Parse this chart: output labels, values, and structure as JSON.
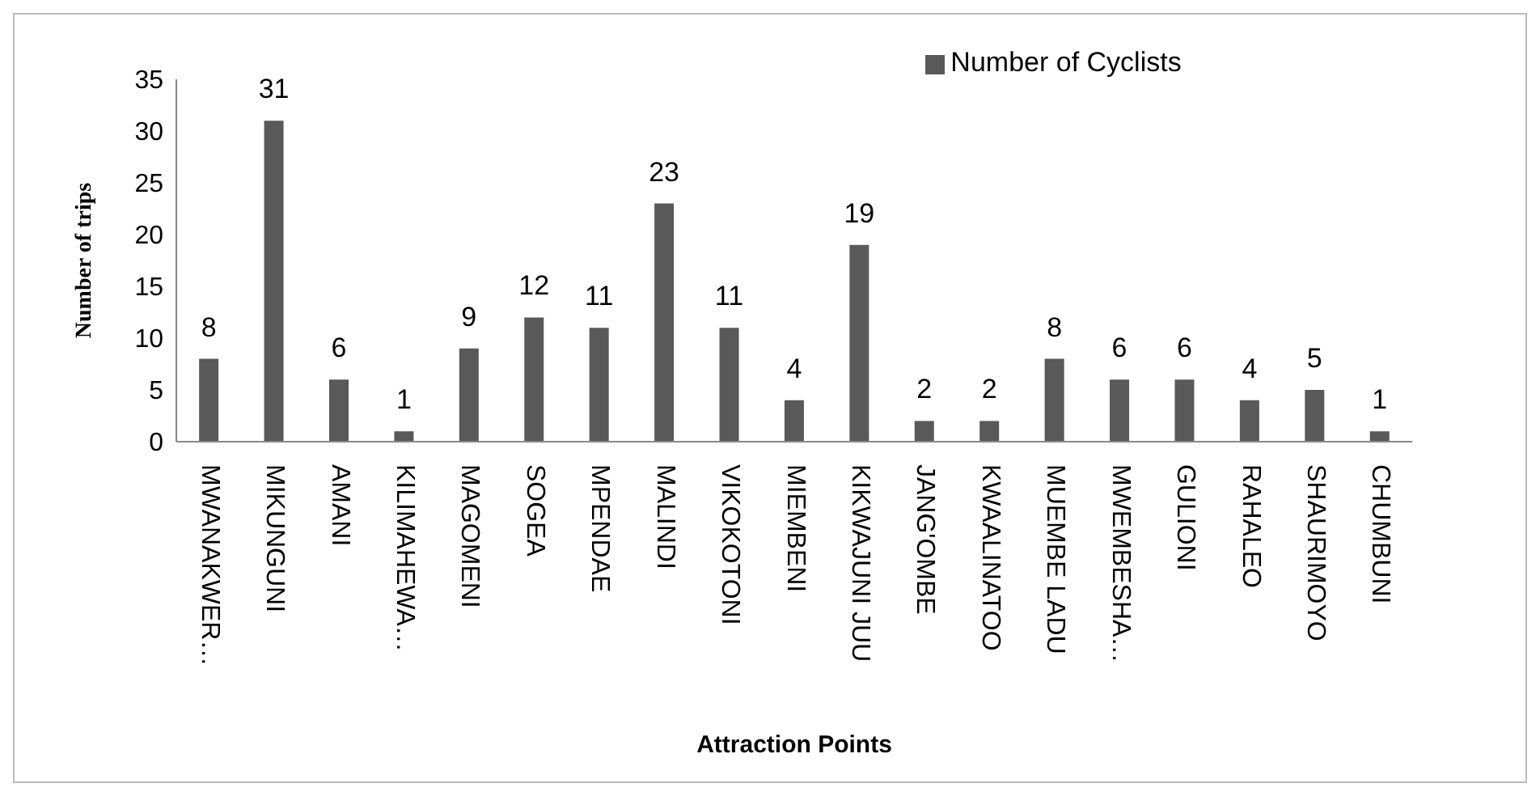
{
  "chart_data": {
    "type": "bar",
    "xlabel": "Attraction Points",
    "ylabel": "Number of trips",
    "categories": [
      "MWANAKWER…",
      "MIKUNGUNI",
      "AMANI",
      "KILIMAHEWA…",
      "MAGOMENI",
      "SOGEA",
      "MPENDAE",
      "MALINDI",
      "VIKOKOTONI",
      "MIEMBENI",
      "KIKWAJUNI JUU",
      "JANG'OMBE",
      "KWAALINATOO",
      "MUEMBE LADU",
      "MWEMBESHA…",
      "GULIONI",
      "RAHALEO",
      "SHAURIMOYO",
      "CHUMBUNI"
    ],
    "series": [
      {
        "name": "Number of Cyclists",
        "color": "#595959",
        "values": [
          8,
          31,
          6,
          1,
          9,
          12,
          11,
          23,
          11,
          4,
          19,
          2,
          2,
          8,
          6,
          6,
          4,
          5,
          1
        ]
      }
    ],
    "ylim": [
      0,
      35
    ],
    "yticks": [
      0,
      5,
      10,
      15,
      20,
      25,
      30,
      35
    ],
    "grid": false,
    "legend": "top",
    "data_labels": true
  }
}
